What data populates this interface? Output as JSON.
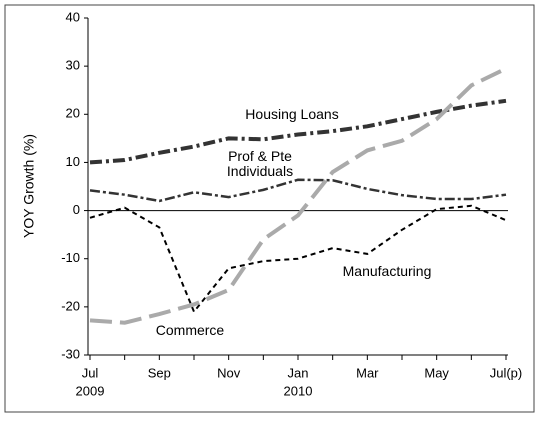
{
  "chart_data": {
    "type": "line",
    "ylabel": "YOY Growth (%)",
    "categories": [
      "Jul",
      null,
      "Sep",
      null,
      "Nov",
      null,
      "Jan",
      null,
      "Mar",
      null,
      "May",
      null,
      "Jul(p)"
    ],
    "sublabels": [
      "2009",
      null,
      null,
      null,
      null,
      null,
      "2010",
      null,
      null,
      null,
      null,
      null,
      null
    ],
    "ylim": [
      -30,
      40
    ],
    "yticks": [
      -30,
      -20,
      -10,
      0,
      10,
      20,
      30,
      40
    ],
    "series": [
      {
        "name": "Housing Loans",
        "color": "#333333",
        "values": [
          10,
          10.5,
          12,
          13.3,
          15,
          14.8,
          15.8,
          16.5,
          17.5,
          19,
          20.5,
          21.8,
          22.8
        ]
      },
      {
        "name": "Prof & Pte Individuals",
        "color": "#333333",
        "values": [
          4.2,
          3.3,
          2.0,
          3.8,
          2.8,
          4.3,
          6.4,
          6.3,
          4.5,
          3.2,
          2.4,
          2.4,
          3.3
        ]
      },
      {
        "name": "Manufacturing",
        "color": "#000000",
        "values": [
          -1.5,
          0.6,
          -3.5,
          -21,
          -12,
          -10.5,
          -10,
          -7.8,
          -9,
          -4,
          0.3,
          1,
          -2
        ]
      },
      {
        "name": "Commerce",
        "color": "#aaaaaa",
        "values": [
          -22.8,
          -23.3,
          -21.5,
          -19.5,
          -16.5,
          -6,
          -1,
          8,
          12.5,
          14.5,
          19,
          26,
          29.5
        ]
      }
    ]
  }
}
